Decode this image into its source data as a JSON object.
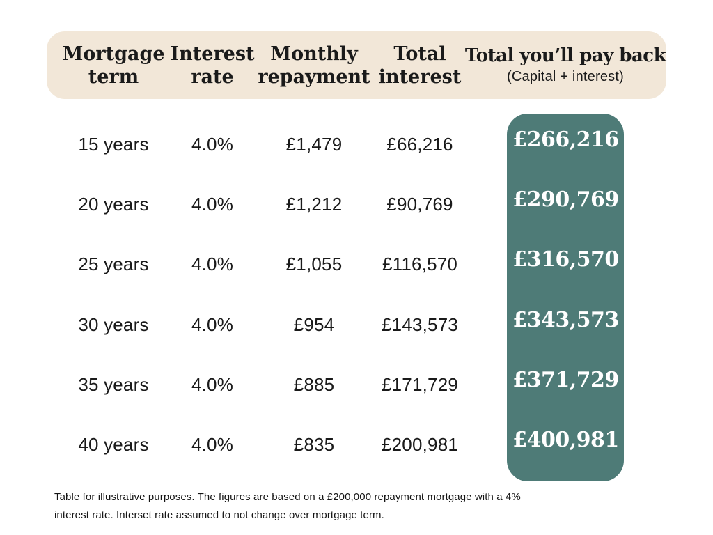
{
  "colors": {
    "page_bg": "#ffffff",
    "header_bg": "#f2e7d8",
    "highlight_bg": "#4e7b77",
    "highlight_text": "#ffffff",
    "text": "#1a1a1a"
  },
  "header": {
    "columns": [
      {
        "label": "Mortgage\nterm"
      },
      {
        "label": "Interest\nrate"
      },
      {
        "label": "Monthly\nrepayment"
      },
      {
        "label": "Total\ninterest"
      },
      {
        "label": "Total you’ll pay back",
        "sublabel": "(Capital + interest)"
      }
    ]
  },
  "table": {
    "rows": [
      {
        "term": "15 years",
        "rate": "4.0%",
        "monthly": "£1,479",
        "interest": "£66,216",
        "total": "£266,216"
      },
      {
        "term": "20 years",
        "rate": "4.0%",
        "monthly": "£1,212",
        "interest": "£90,769",
        "total": "£290,769"
      },
      {
        "term": "25 years",
        "rate": "4.0%",
        "monthly": "£1,055",
        "interest": "£116,570",
        "total": "£316,570"
      },
      {
        "term": "30 years",
        "rate": "4.0%",
        "monthly": "£954",
        "interest": "£143,573",
        "total": "£343,573"
      },
      {
        "term": "35 years",
        "rate": "4.0%",
        "monthly": "£885",
        "interest": "£171,729",
        "total": "£371,729"
      },
      {
        "term": "40 years",
        "rate": "4.0%",
        "monthly": "£835",
        "interest": "£200,981",
        "total": "£400,981"
      }
    ]
  },
  "footnote": {
    "text": "Table for illustrative purposes. The figures are based on a £200,000 repayment mortgage with a 4% interest rate. Interset rate assumed to not change over mortgage term."
  },
  "chart_data": {
    "type": "table",
    "title": "Mortgage repayment comparison by term",
    "columns": [
      "Mortgage term",
      "Interest rate",
      "Monthly repayment",
      "Total interest",
      "Total you’ll pay back (Capital + interest)"
    ],
    "rows": [
      [
        "15 years",
        "4.0%",
        "£1,479",
        "£66,216",
        "£266,216"
      ],
      [
        "20 years",
        "4.0%",
        "£1,212",
        "£90,769",
        "£290,769"
      ],
      [
        "25 years",
        "4.0%",
        "£1,055",
        "£116,570",
        "£316,570"
      ],
      [
        "30 years",
        "4.0%",
        "£954",
        "£143,573",
        "£343,573"
      ],
      [
        "35 years",
        "4.0%",
        "£885",
        "£171,729",
        "£371,729"
      ],
      [
        "40 years",
        "4.0%",
        "£835",
        "£200,981",
        "£400,981"
      ]
    ],
    "numeric": {
      "term_years": [
        15,
        20,
        25,
        30,
        35,
        40
      ],
      "interest_rate_pct": [
        4.0,
        4.0,
        4.0,
        4.0,
        4.0,
        4.0
      ],
      "monthly_repayment_gbp": [
        1479,
        1212,
        1055,
        954,
        885,
        835
      ],
      "total_interest_gbp": [
        66216,
        90769,
        116570,
        143573,
        171729,
        200981
      ],
      "total_payback_gbp": [
        266216,
        290769,
        316570,
        343573,
        371729,
        400981
      ],
      "capital_gbp": 200000
    },
    "note": "Table for illustrative purposes. The figures are based on a £200,000 repayment mortgage with a 4% interest rate. Interset rate assumed to not change over mortgage term."
  }
}
